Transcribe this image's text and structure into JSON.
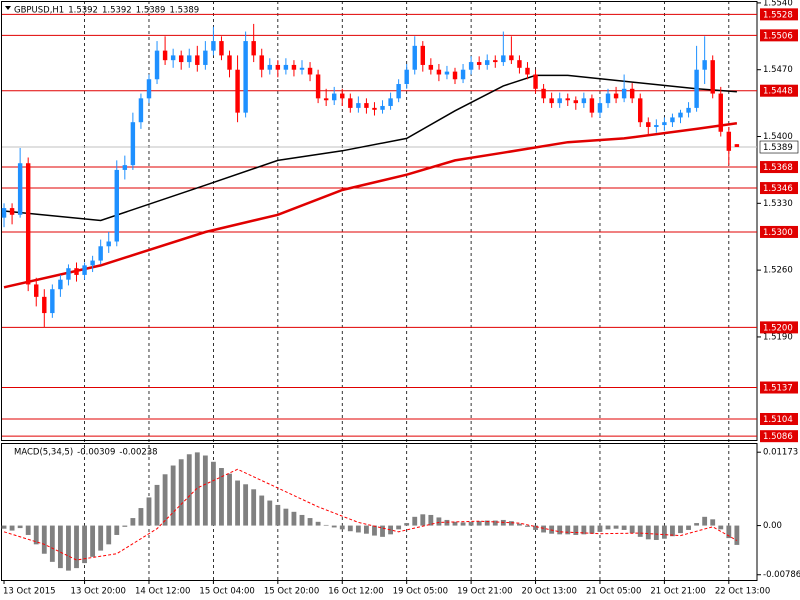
{
  "chart_data": [
    {
      "type": "candlestick",
      "title": "GBPUSD,H1",
      "header_values": [
        1.5392,
        1.5392,
        1.5389,
        1.5389
      ],
      "open": [
        1.5315,
        1.5325,
        1.5318,
        1.5372,
        1.5245,
        1.5232,
        1.5215,
        1.524,
        1.525,
        1.5262,
        1.5255,
        1.5265,
        1.527,
        1.5285,
        1.529,
        1.5365,
        1.537,
        1.5415,
        1.544,
        1.546,
        1.549,
        1.548,
        1.5485,
        1.5478,
        1.5485,
        1.5475,
        1.549,
        1.55,
        1.5485,
        1.547,
        1.5425,
        1.55,
        1.5485,
        1.547,
        1.5475,
        1.547,
        1.5475,
        1.547,
        1.5472,
        1.5465,
        1.544,
        1.5438,
        1.5445,
        1.544,
        1.543,
        1.5435,
        1.543,
        1.5428,
        1.5432,
        1.544,
        1.5455,
        1.547,
        1.5495,
        1.5475,
        1.547,
        1.5465,
        1.5468,
        1.546,
        1.547,
        1.5478,
        1.5475,
        1.548,
        1.5478,
        1.5485,
        1.548,
        1.5472,
        1.5465,
        1.545,
        1.544,
        1.5435,
        1.544,
        1.5438,
        1.5435,
        1.544,
        1.5425,
        1.5435,
        1.5445,
        1.544,
        1.545,
        1.544,
        1.5415,
        1.541,
        1.5412,
        1.5415,
        1.542,
        1.5425,
        1.543,
        1.547,
        1.548,
        1.5445,
        1.5405,
        1.5392
      ],
      "high": [
        1.533,
        1.533,
        1.5388,
        1.5378,
        1.5252,
        1.524,
        1.5245,
        1.5255,
        1.5266,
        1.5268,
        1.5268,
        1.5275,
        1.5292,
        1.53,
        1.5375,
        1.538,
        1.5425,
        1.5445,
        1.5465,
        1.55,
        1.5505,
        1.5492,
        1.549,
        1.5492,
        1.5495,
        1.55,
        1.5515,
        1.5505,
        1.549,
        1.5485,
        1.551,
        1.5518,
        1.5492,
        1.5482,
        1.548,
        1.5482,
        1.548,
        1.548,
        1.5478,
        1.547,
        1.545,
        1.5452,
        1.545,
        1.5445,
        1.5442,
        1.544,
        1.5436,
        1.5438,
        1.5446,
        1.546,
        1.5476,
        1.5505,
        1.55,
        1.5482,
        1.5476,
        1.5474,
        1.5472,
        1.5476,
        1.5484,
        1.5484,
        1.5486,
        1.5485,
        1.551,
        1.5505,
        1.5485,
        1.5478,
        1.547,
        1.5455,
        1.5446,
        1.5446,
        1.5445,
        1.5442,
        1.5446,
        1.5444,
        1.544,
        1.545,
        1.5452,
        1.5465,
        1.5456,
        1.5445,
        1.542,
        1.5418,
        1.542,
        1.5424,
        1.5428,
        1.5436,
        1.5495,
        1.5505,
        1.5485,
        1.5452,
        1.541,
        1.5392
      ],
      "low": [
        1.5305,
        1.5308,
        1.5315,
        1.5238,
        1.5222,
        1.52,
        1.521,
        1.5232,
        1.5244,
        1.5248,
        1.525,
        1.5258,
        1.5266,
        1.5278,
        1.5285,
        1.5355,
        1.5365,
        1.5408,
        1.5435,
        1.5455,
        1.5475,
        1.5472,
        1.547,
        1.5472,
        1.5468,
        1.547,
        1.5485,
        1.548,
        1.5462,
        1.5415,
        1.542,
        1.5478,
        1.5462,
        1.5465,
        1.5462,
        1.5465,
        1.5463,
        1.5465,
        1.5458,
        1.5435,
        1.5432,
        1.5433,
        1.5432,
        1.5425,
        1.5425,
        1.5424,
        1.5422,
        1.5424,
        1.5428,
        1.5436,
        1.545,
        1.5465,
        1.5468,
        1.5465,
        1.5458,
        1.546,
        1.5455,
        1.5456,
        1.5465,
        1.547,
        1.547,
        1.5472,
        1.5474,
        1.5476,
        1.5466,
        1.546,
        1.5445,
        1.5435,
        1.543,
        1.543,
        1.5432,
        1.5428,
        1.543,
        1.542,
        1.542,
        1.543,
        1.5435,
        1.5436,
        1.5435,
        1.541,
        1.5402,
        1.5404,
        1.5406,
        1.541,
        1.5414,
        1.542,
        1.5426,
        1.5455,
        1.544,
        1.54,
        1.537,
        1.5389
      ],
      "close": [
        1.5325,
        1.5318,
        1.5372,
        1.5245,
        1.5232,
        1.5215,
        1.524,
        1.525,
        1.5262,
        1.5255,
        1.5265,
        1.527,
        1.5285,
        1.529,
        1.5365,
        1.537,
        1.5415,
        1.544,
        1.546,
        1.549,
        1.548,
        1.5485,
        1.5478,
        1.5485,
        1.5475,
        1.549,
        1.55,
        1.5485,
        1.547,
        1.5425,
        1.55,
        1.5485,
        1.547,
        1.5475,
        1.547,
        1.5475,
        1.547,
        1.5472,
        1.5465,
        1.544,
        1.5438,
        1.5445,
        1.544,
        1.543,
        1.5435,
        1.543,
        1.5428,
        1.5432,
        1.544,
        1.5455,
        1.547,
        1.5495,
        1.5475,
        1.547,
        1.5465,
        1.5468,
        1.546,
        1.547,
        1.5478,
        1.5475,
        1.548,
        1.5478,
        1.5485,
        1.548,
        1.5472,
        1.5465,
        1.545,
        1.544,
        1.5435,
        1.544,
        1.5438,
        1.5435,
        1.544,
        1.5425,
        1.5435,
        1.5445,
        1.544,
        1.545,
        1.544,
        1.5415,
        1.541,
        1.5412,
        1.5415,
        1.542,
        1.5425,
        1.543,
        1.547,
        1.548,
        1.5445,
        1.5405,
        1.5385,
        1.5389
      ],
      "up_color": "#1e90ff",
      "down_color": "#ff0000",
      "series": [
        {
          "color": "#000000",
          "x": [
            0,
            12,
            25,
            34,
            42,
            50,
            56,
            62,
            66,
            70,
            77,
            86,
            91
          ],
          "values": [
            1.5322,
            1.5312,
            1.5349,
            1.5375,
            1.5385,
            1.5398,
            1.5427,
            1.5453,
            1.5464,
            1.5464,
            1.5458,
            1.545,
            1.5447
          ]
        },
        {
          "color": "#e00000",
          "x": [
            0,
            12,
            25,
            34,
            42,
            50,
            56,
            62,
            70,
            77,
            86,
            91
          ],
          "values": [
            1.5242,
            1.5265,
            1.53,
            1.5318,
            1.5344,
            1.536,
            1.5375,
            1.5383,
            1.5394,
            1.5398,
            1.5408,
            1.5414
          ]
        }
      ],
      "levels": [
        1.5528,
        1.5506,
        1.5448,
        1.5368,
        1.5346,
        {
          "value": 1.53,
          "label": "1.5300"
        },
        {
          "value": 1.52,
          "label": "1.5200"
        },
        1.5137,
        1.5104,
        1.5086
      ],
      "level_color": "#e00000",
      "last_price": 1.5389,
      "xlim": [
        -0.5,
        93.5
      ],
      "ylim": [
        1.5082,
        1.5542
      ],
      "yticks": [
        {
          "value": 1.554,
          "label": "1.5540"
        },
        {
          "value": 1.547,
          "label": "1.5470"
        },
        {
          "value": 1.54,
          "label": "1.5400"
        },
        {
          "value": 1.533,
          "label": "1.5330"
        },
        {
          "value": 1.526,
          "label": "1.5260"
        },
        {
          "value": 1.519,
          "label": "1.5190"
        }
      ],
      "xticks": [
        {
          "value": 0,
          "label": "13 Oct 2015"
        },
        {
          "value": 10,
          "label": "13 Oct 20:00"
        },
        {
          "value": 18,
          "label": "14 Oct 12:00"
        },
        {
          "value": 26,
          "label": "15 Oct 04:00"
        },
        {
          "value": 34,
          "label": "15 Oct 20:00"
        },
        {
          "value": 42,
          "label": "16 Oct 12:00"
        },
        {
          "value": 50,
          "label": "19 Oct 05:00"
        },
        {
          "value": 58,
          "label": "19 Oct 21:00"
        },
        {
          "value": 66,
          "label": "20 Oct 13:00"
        },
        {
          "value": 74,
          "label": "21 Oct 05:00"
        },
        {
          "value": 82,
          "label": "21 Oct 21:00"
        },
        {
          "value": 90,
          "label": "22 Oct 13:00"
        }
      ]
    },
    {
      "type": "bar",
      "title": "MACD(5,34,5)",
      "header_values": [
        -0.00309,
        -0.00238
      ],
      "color": "#808080",
      "values": [
        -0.0005,
        -0.0008,
        -0.0004,
        -0.0015,
        -0.003,
        -0.0045,
        -0.0058,
        -0.0068,
        -0.0072,
        -0.0068,
        -0.006,
        -0.005,
        -0.004,
        -0.003,
        -0.0015,
        -0.0002,
        0.0012,
        0.0028,
        0.0045,
        0.0065,
        0.0082,
        0.0096,
        0.0106,
        0.0114,
        0.0117,
        0.0112,
        0.0102,
        0.0092,
        0.0083,
        0.0072,
        0.0066,
        0.0058,
        0.0048,
        0.004,
        0.0033,
        0.0027,
        0.0022,
        0.0017,
        0.0012,
        0.0006,
        0.0001,
        -0.0003,
        -0.0006,
        -0.0009,
        -0.0011,
        -0.0013,
        -0.0016,
        -0.0018,
        -0.0014,
        -0.0006,
        0.0004,
        0.0014,
        0.0018,
        0.0017,
        0.0013,
        0.0009,
        0.0006,
        0.0005,
        0.0006,
        0.0007,
        0.0008,
        0.0008,
        0.0009,
        0.0007,
        0.0003,
        -0.0002,
        -0.0007,
        -0.0011,
        -0.0013,
        -0.0014,
        -0.0014,
        -0.0015,
        -0.0014,
        -0.0013,
        -0.001,
        -0.0006,
        -0.0005,
        -0.0007,
        -0.0012,
        -0.0018,
        -0.0022,
        -0.0023,
        -0.0021,
        -0.0017,
        -0.0012,
        -0.0007,
        0.0004,
        0.0014,
        0.001,
        -0.0006,
        -0.002,
        -0.00309
      ],
      "series": [
        {
          "color": "#ff0000",
          "x": [
            0,
            5,
            9,
            14,
            19,
            24,
            29,
            34,
            39,
            44,
            49,
            54,
            59,
            64,
            69,
            74,
            79,
            84,
            88,
            91
          ],
          "values": [
            -0.001,
            -0.003,
            -0.0055,
            -0.0045,
            -0.0005,
            0.006,
            0.009,
            0.006,
            0.003,
            0.0005,
            -0.001,
            0.0005,
            0.0007,
            0.0004,
            -0.001,
            -0.0013,
            -0.0012,
            -0.0016,
            -0.0002,
            -0.00238
          ]
        }
      ],
      "xlim": [
        -0.5,
        93.5
      ],
      "ylim": [
        -0.0087,
        0.0132
      ],
      "yticks": [
        0.01173,
        {
          "value": 0,
          "label": "0.00"
        },
        -0.00786
      ]
    }
  ]
}
